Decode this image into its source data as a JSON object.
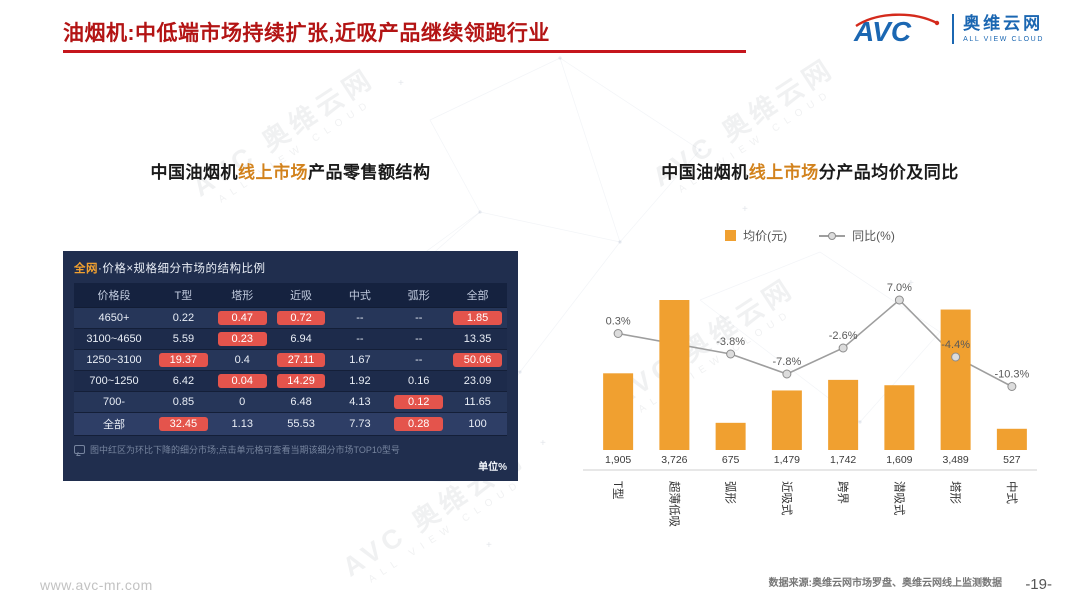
{
  "colors": {
    "title_red": "#B31414",
    "accent_orange": "#F0A030",
    "logo_blue": "#1B67B2",
    "red_cell": "#E4544C",
    "line_gray": "#9E9E9E"
  },
  "header": {
    "title": "油烟机:中低端市场持续扩张,近吸产品继续领跑行业",
    "logo": {
      "abbr": "AVC",
      "name_cn": "奥维云网",
      "name_en": "ALL VIEW CLOUD"
    }
  },
  "watermark": {
    "line1": "AVC 奥维云网",
    "line2": "ALL VIEW CLOUD"
  },
  "left_section": {
    "heading": {
      "prefix": "中国油烟机",
      "highlight": "线上市场",
      "suffix": "产品零售额结构"
    }
  },
  "right_section": {
    "heading": {
      "prefix": "中国油烟机",
      "highlight": "线上市场",
      "suffix": "分产品均价及同比"
    }
  },
  "chart_data": [
    {
      "type": "table",
      "title_highlight": "全网",
      "title_rest": "·价格×规格细分市场的结构比例",
      "columns": [
        "价格段",
        "T型",
        "塔形",
        "近吸",
        "中式",
        "弧形",
        "全部"
      ],
      "rows": [
        [
          "4650+",
          "0.22",
          "0.47",
          "0.72",
          "--",
          "--",
          "1.85"
        ],
        [
          "3100~4650",
          "5.59",
          "0.23",
          "6.94",
          "--",
          "--",
          "13.35"
        ],
        [
          "1250~3100",
          "19.37",
          "0.4",
          "27.11",
          "1.67",
          "--",
          "50.06"
        ],
        [
          "700~1250",
          "6.42",
          "0.04",
          "14.29",
          "1.92",
          "0.16",
          "23.09"
        ],
        [
          "700-",
          "0.85",
          "0",
          "6.48",
          "4.13",
          "0.12",
          "11.65"
        ],
        [
          "全部",
          "32.45",
          "1.13",
          "55.53",
          "7.73",
          "0.28",
          "100"
        ]
      ],
      "red_cells": [
        "0-2",
        "0-3",
        "0-6",
        "1-2",
        "2-1",
        "2-3",
        "2-6",
        "3-2",
        "3-3",
        "4-5",
        "5-1",
        "5-5"
      ],
      "note": "图中红区为环比下降的细分市场;点击单元格可查看当期该细分市场TOP10型号",
      "unit": "单位%"
    },
    {
      "type": "bar+line",
      "title": "中国油烟机线上市场分产品均价及同比",
      "categories": [
        "T型",
        "超薄低吸",
        "弧形",
        "近吸式",
        "跨界",
        "潜吸式",
        "塔形",
        "中式"
      ],
      "series": [
        {
          "name": "均价(元)",
          "type": "bar",
          "values": [
            1905,
            3726,
            675,
            1479,
            1742,
            1609,
            3489,
            527
          ]
        },
        {
          "name": "同比(%)",
          "type": "line",
          "values": [
            0.3,
            null,
            -3.8,
            -7.8,
            -2.6,
            7.0,
            -4.4,
            -10.3
          ]
        }
      ],
      "legend_position": "top",
      "grid": false
    }
  ],
  "footer": {
    "website": "www.avc-mr.com",
    "source": "数据来源:奥维云网市场罗盘、奥维云网线上监测数据",
    "page": "-19-"
  }
}
